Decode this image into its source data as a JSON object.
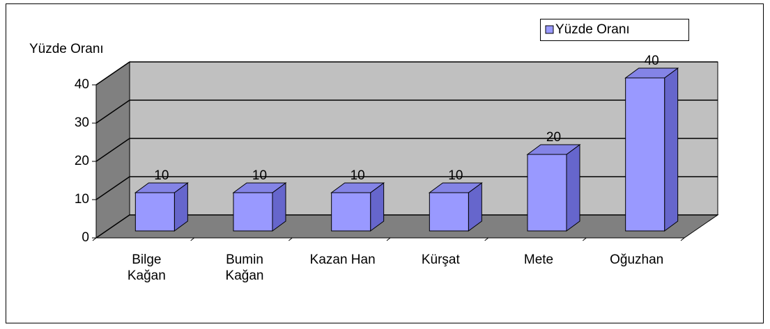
{
  "chart_data": {
    "type": "bar",
    "y_axis_label": "Yüzde Oranı",
    "categories": [
      "Bilge\nKağan",
      "Bumin\nKağan",
      "Kazan Han",
      "Kürşat",
      "Mete",
      "Oğuzhan"
    ],
    "series": [
      {
        "name": "Yüzde Oranı",
        "color": "#9999ff",
        "values": [
          10,
          10,
          10,
          10,
          20,
          40
        ]
      }
    ],
    "ylim": [
      0,
      40
    ],
    "yticks": [
      0,
      10,
      20,
      30,
      40
    ],
    "grid": true,
    "legend": "top-right"
  }
}
